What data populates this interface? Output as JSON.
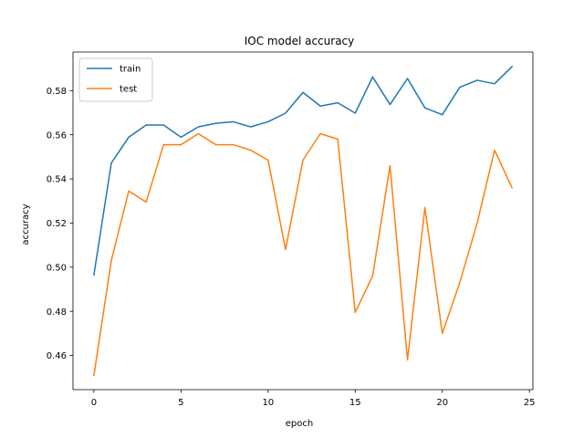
{
  "chart_data": {
    "type": "line",
    "title": "IOC model accuracy",
    "xlabel": "epoch",
    "ylabel": "accuracy",
    "xlim": [
      -1.2,
      25.2
    ],
    "ylim": [
      0.4445,
      0.5975
    ],
    "xticks": [
      0,
      5,
      10,
      15,
      20,
      25
    ],
    "yticks": [
      0.46,
      0.48,
      0.5,
      0.52,
      0.54,
      0.56,
      0.58
    ],
    "ytick_labels": [
      "0.46",
      "0.48",
      "0.50",
      "0.52",
      "0.54",
      "0.56",
      "0.58"
    ],
    "grid": false,
    "legend": "upper left",
    "x": [
      0,
      1,
      2,
      3,
      4,
      5,
      6,
      7,
      8,
      9,
      10,
      11,
      12,
      13,
      14,
      15,
      16,
      17,
      18,
      19,
      20,
      21,
      22,
      23,
      24
    ],
    "series": [
      {
        "name": "train",
        "color": "#1f77b4",
        "values": [
          0.4965,
          0.5472,
          0.5589,
          0.5644,
          0.5644,
          0.5589,
          0.5636,
          0.5652,
          0.5659,
          0.5636,
          0.5659,
          0.5698,
          0.5792,
          0.573,
          0.5745,
          0.5698,
          0.5862,
          0.5737,
          0.5855,
          0.5722,
          0.5691,
          0.5815,
          0.5847,
          0.5831,
          0.5909
        ]
      },
      {
        "name": "test",
        "color": "#ff7f0e",
        "values": [
          0.451,
          0.503,
          0.5345,
          0.5295,
          0.5555,
          0.5555,
          0.5605,
          0.5555,
          0.5555,
          0.553,
          0.5485,
          0.508,
          0.5485,
          0.5605,
          0.558,
          0.4795,
          0.496,
          0.546,
          0.458,
          0.527,
          0.47,
          0.493,
          0.52,
          0.553,
          0.536
        ]
      }
    ]
  }
}
